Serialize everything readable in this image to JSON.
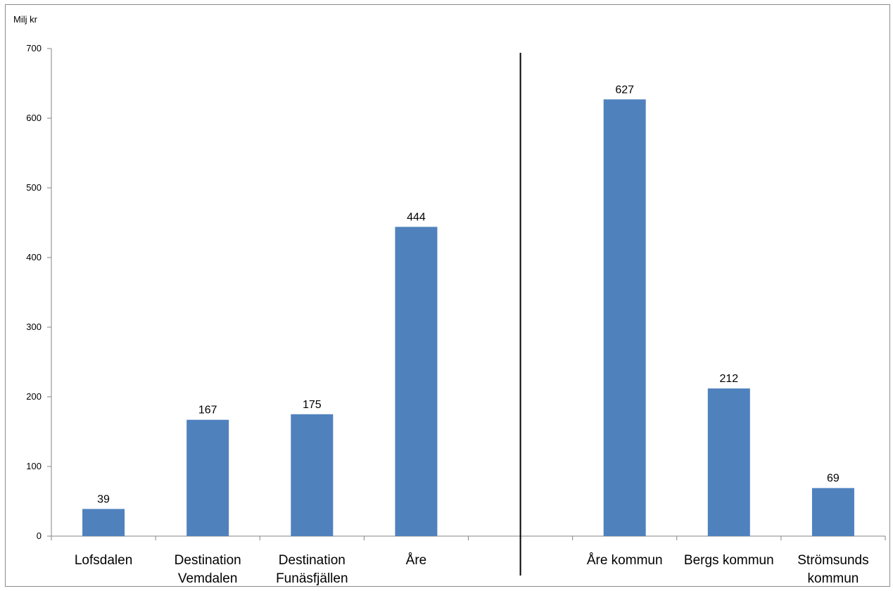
{
  "chart_data": {
    "type": "bar",
    "ylabel": "Milj kr",
    "ylim": [
      0,
      700
    ],
    "yticks": [
      0,
      100,
      200,
      300,
      400,
      500,
      600,
      700
    ],
    "categories": [
      [
        "Lofsdalen"
      ],
      [
        "Destination",
        "Vemdalen"
      ],
      [
        "Destination",
        "Funäsfjällen"
      ],
      [
        "Åre"
      ],
      [
        ""
      ],
      [
        "Åre kommun"
      ],
      [
        "Bergs kommun"
      ],
      [
        "Strömsunds",
        "kommun"
      ]
    ],
    "values": [
      39,
      167,
      175,
      444,
      null,
      627,
      212,
      69
    ],
    "data_labels": [
      "39",
      "167",
      "175",
      "444",
      "",
      "627",
      "212",
      "69"
    ],
    "bar_color": "#4F81BD",
    "separator_between": [
      3,
      5
    ],
    "grid": false,
    "legend": "none"
  }
}
